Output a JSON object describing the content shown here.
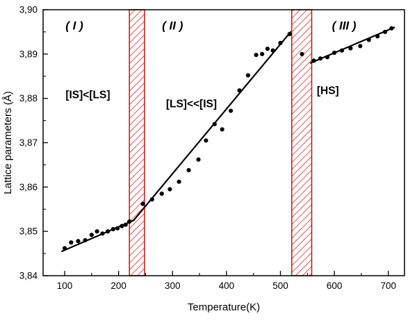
{
  "chart_data": {
    "type": "scatter",
    "title": "",
    "xlabel": "Temperature(K)",
    "ylabel": "Lattice parameters (Å)",
    "xlim": [
      60,
      730
    ],
    "ylim": [
      3.84,
      3.9
    ],
    "grid": false,
    "legend": "none",
    "xticks": [
      100,
      200,
      300,
      400,
      500,
      600,
      700
    ],
    "xtick_labels": [
      "100",
      "200",
      "300",
      "400",
      "500",
      "600",
      "700"
    ],
    "yticks": [
      3.84,
      3.85,
      3.86,
      3.87,
      3.88,
      3.89,
      3.9
    ],
    "ytick_labels": [
      "3,84",
      "3,85",
      "3,86",
      "3,87",
      "3,88",
      "3,89",
      "3,90"
    ],
    "colors": {
      "points": "#000000",
      "lines": "#000000",
      "band": "#cc1111"
    },
    "points": [
      [
        100,
        3.8462
      ],
      [
        112,
        3.8475
      ],
      [
        125,
        3.8478
      ],
      [
        138,
        3.848
      ],
      [
        150,
        3.8492
      ],
      [
        160,
        3.85
      ],
      [
        170,
        3.8495
      ],
      [
        180,
        3.85
      ],
      [
        190,
        3.8505
      ],
      [
        198,
        3.8507
      ],
      [
        206,
        3.8512
      ],
      [
        213,
        3.8515
      ],
      [
        220,
        3.8522
      ],
      [
        245,
        3.8562
      ],
      [
        262,
        3.8572
      ],
      [
        280,
        3.8585
      ],
      [
        295,
        3.8595
      ],
      [
        312,
        3.8612
      ],
      [
        330,
        3.8638
      ],
      [
        348,
        3.8662
      ],
      [
        362,
        3.8705
      ],
      [
        378,
        3.8742
      ],
      [
        392,
        3.873
      ],
      [
        408,
        3.8772
      ],
      [
        424,
        3.8818
      ],
      [
        440,
        3.8852
      ],
      [
        455,
        3.8898
      ],
      [
        466,
        3.89
      ],
      [
        476,
        3.8912
      ],
      [
        486,
        3.8908
      ],
      [
        500,
        3.8925
      ],
      [
        517,
        3.8945
      ],
      [
        540,
        3.89
      ],
      [
        562,
        3.8885
      ],
      [
        574,
        3.889
      ],
      [
        587,
        3.8893
      ],
      [
        600,
        3.8903
      ],
      [
        614,
        3.8908
      ],
      [
        630,
        3.8913
      ],
      [
        648,
        3.8918
      ],
      [
        664,
        3.8932
      ],
      [
        680,
        3.894
      ],
      [
        694,
        3.895
      ],
      [
        706,
        3.8958
      ]
    ],
    "fit_lines": [
      [
        [
          95,
          3.8455
        ],
        [
          228,
          3.8525
        ]
      ],
      [
        [
          228,
          3.8525
        ],
        [
          519,
          3.895
        ]
      ],
      [
        [
          556,
          3.888
        ],
        [
          711,
          3.896
        ]
      ]
    ],
    "bands": [
      {
        "x_start": 220,
        "x_end": 248
      },
      {
        "x_start": 521,
        "x_end": 558
      }
    ],
    "annotations": [
      {
        "text": "( I )",
        "x": 118,
        "y": 3.8955,
        "style": "region"
      },
      {
        "text": "( II )",
        "x": 300,
        "y": 3.8955,
        "style": "region"
      },
      {
        "text": "( III )",
        "x": 618,
        "y": 3.8955,
        "style": "region"
      },
      {
        "text": "[IS]<[LS]",
        "x": 143,
        "y": 3.88,
        "style": "state"
      },
      {
        "text": "[LS]<<[IS]",
        "x": 335,
        "y": 3.878,
        "style": "state"
      },
      {
        "text": "[HS]",
        "x": 588,
        "y": 3.881,
        "style": "state"
      }
    ]
  }
}
